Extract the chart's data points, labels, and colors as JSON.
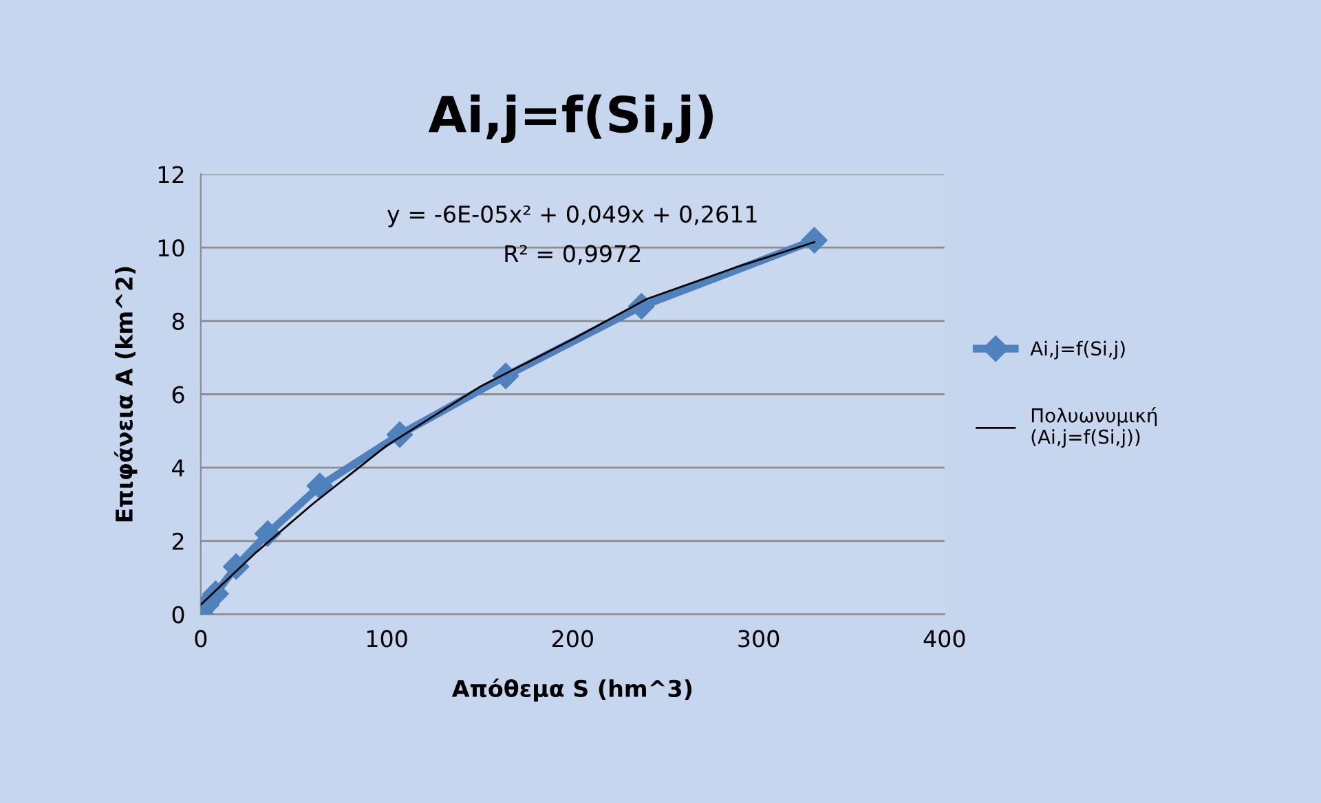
{
  "chart_data": {
    "type": "line",
    "title": "Ai,j=f(Si,j)",
    "xlabel": "Απόθεμα S (hm^3)",
    "ylabel": "Επιφάνεια A (km^2)",
    "series": [
      {
        "name": "Ai,j=f(Si,j)",
        "color": "#4f81bd",
        "marker": "diamond",
        "x": [
          0,
          3,
          8,
          19,
          36,
          64,
          107,
          164,
          237,
          330
        ],
        "values": [
          0,
          0.26,
          0.56,
          1.3,
          2.2,
          3.5,
          4.9,
          6.5,
          8.4,
          10.2
        ]
      },
      {
        "name": "Πολυωνυμική\n(Ai,j=f(Si,j))",
        "color": "#000000",
        "type": "line",
        "marker": "none",
        "x": [
          0,
          30,
          60,
          100,
          150,
          200,
          240,
          290,
          330
        ],
        "values": [
          0.26,
          1.7,
          3.0,
          4.6,
          6.2,
          7.5,
          8.6,
          9.5,
          10.15
        ]
      }
    ],
    "annotations": [
      "y = -6E-05x² + 0,049x + 0,2611",
      "R² = 0,9972"
    ],
    "xlim": [
      0,
      400
    ],
    "xticks": [
      0,
      100,
      200,
      300,
      400
    ],
    "ylim": [
      0,
      12
    ],
    "yticks": [
      0,
      2,
      4,
      6,
      8,
      10,
      12
    ],
    "grid": "y",
    "legend": "right",
    "line_style": "solid"
  }
}
